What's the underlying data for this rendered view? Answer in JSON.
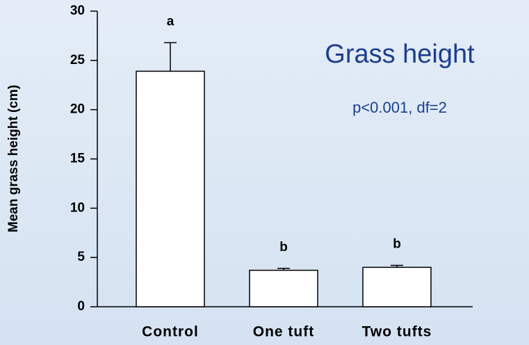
{
  "chart_data": {
    "type": "bar",
    "title": "Grass height",
    "subtitle": "p<0.001, df=2",
    "y_label": "Mean grass height (cm)",
    "categories": [
      "Control",
      "One tuft",
      "Two tufts"
    ],
    "values": [
      23.9,
      3.7,
      4.0
    ],
    "errors": [
      2.9,
      0.2,
      0.2
    ],
    "annotations": [
      "a",
      "b",
      "b"
    ],
    "color": "#ffffff",
    "ylim": [
      0,
      30
    ],
    "yticks": [
      0,
      5,
      10,
      15,
      20,
      25,
      30
    ],
    "grid": false
  }
}
